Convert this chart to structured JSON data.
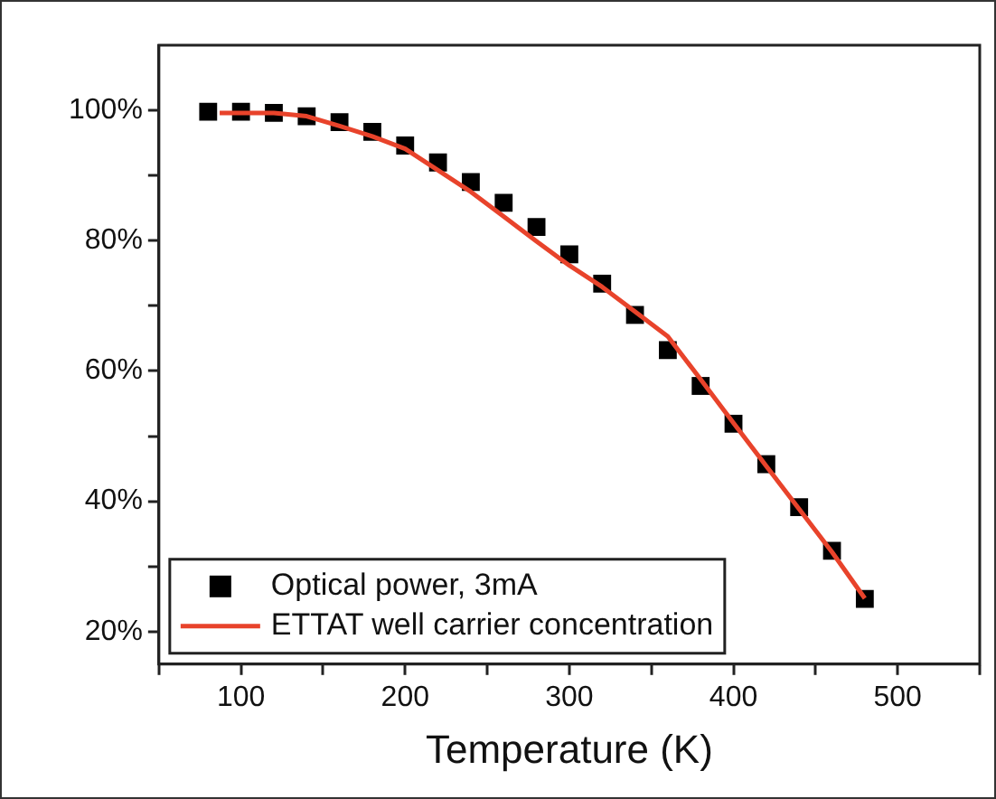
{
  "chart_data": {
    "type": "scatter",
    "xlabel": "Temperature (K)",
    "xlim": [
      50,
      550
    ],
    "ylim": [
      15,
      110
    ],
    "xticks": [
      {
        "value": 50,
        "label": null
      },
      100,
      {
        "value": 150,
        "label": null
      },
      200,
      {
        "value": 250,
        "label": null
      },
      300,
      {
        "value": 350,
        "label": null
      },
      400,
      {
        "value": 450,
        "label": null
      },
      500,
      {
        "value": 550,
        "label": null
      }
    ],
    "yticks": [
      {
        "value": 20,
        "label": "20%"
      },
      {
        "value": 30,
        "label": null
      },
      {
        "value": 40,
        "label": "40%"
      },
      {
        "value": 50,
        "label": null
      },
      {
        "value": 60,
        "label": "60%"
      },
      {
        "value": 70,
        "label": null
      },
      {
        "value": 80,
        "label": "80%"
      },
      {
        "value": 90,
        "label": null
      },
      {
        "value": 100,
        "label": "100%"
      }
    ],
    "grid": false,
    "legend": "bottom left",
    "series": [
      {
        "name": "Optical power, 3mA",
        "marker": "square",
        "color": "#000000",
        "x": [
          80,
          100,
          120,
          140,
          160,
          180,
          200,
          220,
          240,
          260,
          280,
          300,
          320,
          340,
          360,
          380,
          400,
          420,
          440,
          460,
          480
        ],
        "values": [
          99.8,
          99.8,
          99.6,
          99.1,
          98.2,
          96.7,
          94.6,
          92,
          89,
          85.8,
          82.1,
          77.9,
          73.4,
          68.6,
          63.2,
          57.7,
          51.9,
          45.7,
          39.1,
          32.4,
          25
        ]
      },
      {
        "name": "ETTAT well carrier concentration",
        "type": "line",
        "marker": "none",
        "line_style": "solid",
        "color": "#e8432b",
        "x": [
          87,
          120,
          140,
          160,
          180,
          200,
          220,
          240,
          260,
          280,
          300,
          320,
          340,
          360,
          380,
          400,
          420,
          440,
          460,
          480
        ],
        "values": [
          99.6,
          99.6,
          99.1,
          97.6,
          96,
          94.1,
          90.8,
          87.5,
          83.7,
          79.9,
          76.2,
          72.9,
          69.1,
          65.3,
          58.7,
          52,
          45.4,
          38.8,
          32.2,
          25.1
        ]
      }
    ]
  }
}
